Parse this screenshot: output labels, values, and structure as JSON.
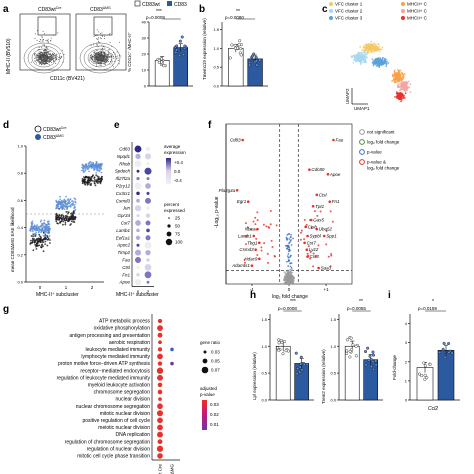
{
  "panel_labels": {
    "a": "a",
    "b": "b",
    "c": "c",
    "d": "d",
    "e": "e",
    "f": "f",
    "g": "g",
    "h": "h",
    "i": "i"
  },
  "colors": {
    "wt": "#ffffff",
    "ko": "#2c5aa0",
    "ko_light": "#5b8fd6",
    "red": "#e8312a",
    "pink": "#f3a8a8",
    "grey": "#9a9a9a",
    "magenta": "#c2187a",
    "purple": "#6a3aa0"
  },
  "panel_a": {
    "plot1_title": "CD83wt",
    "plot1_title_sup": "Cre",
    "plot2_title": "CD83",
    "plot2_title_sup": "ΔMG",
    "ylabel": "MHC-II (BV510)",
    "xlabel": "CD11c (BV421)",
    "legend_wt": "CD83wt",
    "legend_ko": "CD83",
    "bar_ylabel": "% CD11c⁺ /MHC-II⁺",
    "bar_sig": "***",
    "bar_p": "p=0.0009",
    "yticks": [
      "0",
      "10",
      "20",
      "30",
      "40"
    ],
    "chart_data": {
      "type": "bar",
      "categories": [
        "CD83wt Cre",
        "CD83 ΔMG"
      ],
      "values": [
        16,
        24
      ],
      "ylim": [
        0,
        40
      ]
    }
  },
  "panel_b": {
    "ylabel": "Tmem119 expression (relative)",
    "sig": "**",
    "p": "p=0.0080",
    "yticks": [
      "0.0",
      "0.5",
      "1.0",
      "1.5"
    ],
    "chart_data": {
      "type": "bar",
      "categories": [
        "CD83wt Cre",
        "CD83 ΔMG"
      ],
      "values": [
        1.0,
        0.72
      ],
      "ylim": [
        0,
        1.7
      ]
    }
  },
  "panel_c": {
    "legend": [
      "VFC cluster 1",
      "VFC cluster 2",
      "VFC cluster 3",
      "MHCII+ C",
      "MHCII+ C",
      "MHCII+ C"
    ],
    "legend_colors": [
      "#f6c85f",
      "#a7d7f0",
      "#5aa0d8",
      "#f7a04a",
      "#f4a3a3",
      "#e8312a"
    ],
    "xlabel": "UMAP1",
    "ylabel": "UMAP2"
  },
  "panel_d": {
    "legend_wt": "CD83wt",
    "legend_wt_sup": "Cre",
    "legend_ko": "CD83",
    "legend_ko_sup": "ΔMG",
    "ylabel": "mean CD83ΔMG EAE likelihood",
    "xlabel": "MHC-II⁺ subcluster",
    "xticks": [
      "0",
      "1",
      "2"
    ],
    "yticks": [
      "0.0",
      "0.2",
      "0.4",
      "0.6",
      "0.8",
      "1.0"
    ]
  },
  "panel_e": {
    "genes": [
      "Cd83",
      "Npqd1",
      "Rhob",
      "Spdech",
      "Ifi27l2a",
      "P2ry12",
      "Cx3cr1",
      "Csmd3",
      "Jun",
      "Gpr34",
      "Cst7",
      "Lamb1",
      "Eef1a1",
      "Apoc2",
      "Timp2",
      "Fau",
      "Ctsl",
      "Fn1",
      "Apoe"
    ],
    "xlabel": "MHC-II⁺ subcluster",
    "xticks": [
      "0",
      "1",
      "2"
    ],
    "avg_title": "average expression",
    "avg_ticks": [
      "+0.4",
      "0.0",
      "-0.4"
    ],
    "pct_title": "percent expressed",
    "pct_vals": [
      "25",
      "50",
      "75",
      "100"
    ]
  },
  "panel_f": {
    "xlabel": "log₂ fold change",
    "ylabel": "-Log₁₀ p-value",
    "xticks": [
      "-1",
      "0",
      "+1"
    ],
    "legend": [
      "not significant",
      "log₂ fold change",
      "p-value",
      "p-value & log₂ fold change"
    ],
    "labels": [
      "Cd83",
      "Fau",
      "Cdc80",
      "Apoe",
      "Ctsl",
      "Fn1",
      "Tpt1",
      "Pla2g4a",
      "Egr1",
      "Nbea",
      "Lamb1",
      "Tbg1",
      "Csmd3",
      "Hdac9",
      "Adamts1",
      "Gas5",
      "Ctsb",
      "Uba52",
      "Sypbl",
      "Spp1",
      "Cst7",
      "Lyz2",
      "Cst3",
      "Saa3"
    ],
    "legend_colors": [
      "#9a9a9a",
      "#4a8f3a",
      "#3a6fc4",
      "#e8312a"
    ]
  },
  "panel_g": {
    "terms": [
      "ATP metabolic process",
      "oxidative phosphorylation",
      "antigen processing and presentation",
      "aerobic respiration",
      "leukocyte mediated immunity",
      "lymphocyte mediated immunity",
      "proton motive force−driven ATP synthesis",
      "receptor−mediated endocytosis",
      "regulation of leukocyte mediated immunity",
      "myeloid leukocyte activation",
      "chromosome segregation",
      "nuclear division",
      "nuclear chromosome segregation",
      "mitotic nuclear division",
      "positive regulation of cell cycle",
      "meiotic nuclear division",
      "DNA replication",
      "regulation of chromosome segregation",
      "regulation of nuclear division",
      "mitotic cell cycle phase transition"
    ],
    "xticks": [
      "CD83wt Cre",
      "CD83ΔMG"
    ],
    "ratio_title": "gene ratio",
    "ratio_vals": [
      "0.03",
      "0.05",
      "0.07"
    ],
    "padj_title": "adjusted p-value",
    "padj_vals": [
      "0.03",
      "0.02",
      "0.01"
    ]
  },
  "panel_h": {
    "ylabel1": "Lpl expression (relative)",
    "sig1": "***",
    "p1": "p=0.0008",
    "ylabel2": "Trem2 expression (relative)",
    "sig2": "**",
    "p2": "p=0.0055",
    "yticks": [
      "0.0",
      "0.5",
      "1.0",
      "1.5"
    ],
    "chart_data": [
      {
        "type": "bar",
        "categories": [
          "CD83wt Cre",
          "CD83 ΔMG"
        ],
        "values": [
          1.0,
          0.68
        ],
        "ylim": [
          0,
          1.6
        ]
      },
      {
        "type": "bar",
        "categories": [
          "CD83wt Cre",
          "CD83 ΔMG"
        ],
        "values": [
          1.0,
          0.75
        ],
        "ylim": [
          0,
          1.6
        ]
      }
    ]
  },
  "panel_i": {
    "ylabel": "Fold-change",
    "sig": "*",
    "p": "p=0.0159",
    "xlabel": "Ccl2",
    "yticks": [
      "0",
      "1",
      "2",
      "3",
      "4"
    ],
    "chart_data": {
      "type": "bar",
      "categories": [
        "CD83wt Cre",
        "CD83 ΔMG"
      ],
      "values": [
        1.7,
        2.6
      ],
      "ylim": [
        0,
        4.5
      ]
    }
  }
}
